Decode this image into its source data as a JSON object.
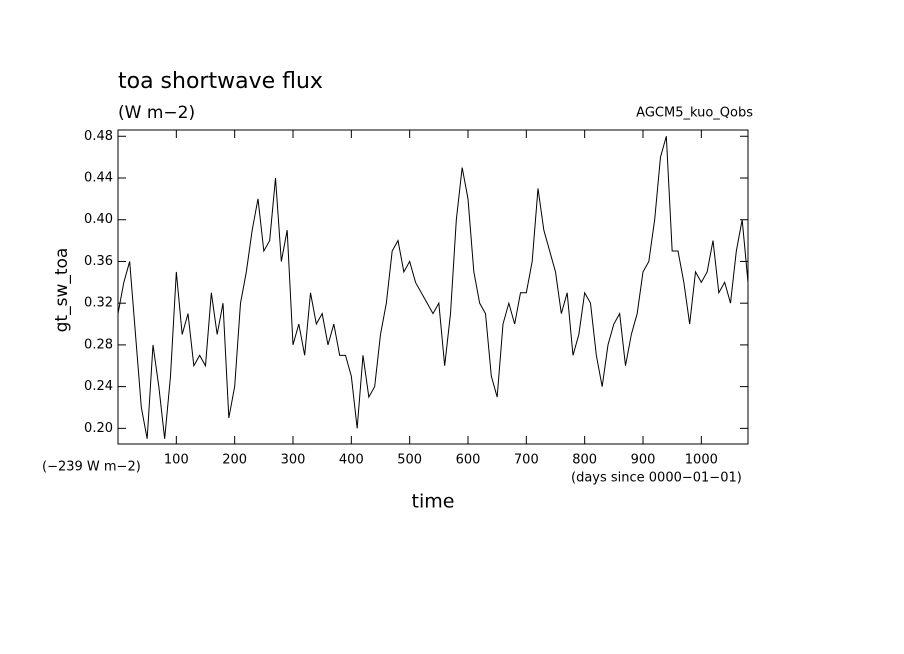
{
  "chart_data": {
    "type": "line",
    "title": "toa shortwave flux",
    "subtitle": "(W m−2)",
    "annotation_right": "AGCM5_kuo_Qobs",
    "annotation_offset": "(−239 W m−2)",
    "annotation_units": "(days since 0000−01−01)",
    "x_label": "time",
    "y_label": "gt_sw_toa",
    "x": [
      0,
      10,
      20,
      30,
      40,
      50,
      60,
      70,
      80,
      90,
      100,
      110,
      120,
      130,
      140,
      150,
      160,
      170,
      180,
      190,
      200,
      210,
      220,
      230,
      240,
      250,
      260,
      270,
      280,
      290,
      300,
      310,
      320,
      330,
      340,
      350,
      360,
      370,
      380,
      390,
      400,
      410,
      420,
      430,
      440,
      450,
      460,
      470,
      480,
      490,
      500,
      510,
      520,
      530,
      540,
      550,
      560,
      570,
      580,
      590,
      600,
      610,
      620,
      630,
      640,
      650,
      660,
      670,
      680,
      690,
      700,
      710,
      720,
      730,
      740,
      750,
      760,
      770,
      780,
      790,
      800,
      810,
      820,
      830,
      840,
      850,
      860,
      870,
      880,
      890,
      900,
      910,
      920,
      930,
      940,
      950,
      960,
      970,
      980,
      990,
      1000,
      1010,
      1020,
      1030,
      1040,
      1050,
      1060,
      1070,
      1080
    ],
    "series": [
      {
        "name": "gt_sw_toa",
        "color": "#000000",
        "values": [
          0.31,
          0.34,
          0.36,
          0.29,
          0.22,
          0.19,
          0.28,
          0.24,
          0.19,
          0.25,
          0.35,
          0.29,
          0.31,
          0.26,
          0.27,
          0.26,
          0.33,
          0.29,
          0.32,
          0.21,
          0.24,
          0.32,
          0.35,
          0.39,
          0.42,
          0.37,
          0.38,
          0.44,
          0.36,
          0.39,
          0.28,
          0.3,
          0.27,
          0.33,
          0.3,
          0.31,
          0.28,
          0.3,
          0.27,
          0.27,
          0.25,
          0.2,
          0.27,
          0.23,
          0.24,
          0.29,
          0.32,
          0.37,
          0.38,
          0.35,
          0.36,
          0.34,
          0.33,
          0.32,
          0.31,
          0.32,
          0.26,
          0.31,
          0.4,
          0.45,
          0.42,
          0.35,
          0.32,
          0.31,
          0.25,
          0.23,
          0.3,
          0.32,
          0.3,
          0.33,
          0.33,
          0.36,
          0.43,
          0.39,
          0.37,
          0.35,
          0.31,
          0.33,
          0.27,
          0.29,
          0.33,
          0.32,
          0.27,
          0.24,
          0.28,
          0.3,
          0.31,
          0.26,
          0.29,
          0.31,
          0.35,
          0.36,
          0.4,
          0.46,
          0.48,
          0.37,
          0.37,
          0.34,
          0.3,
          0.35,
          0.34,
          0.35,
          0.38,
          0.33,
          0.34,
          0.32,
          0.37,
          0.4,
          0.34
        ]
      }
    ],
    "xlim": [
      0,
      1080
    ],
    "ylim": [
      0.185,
      0.486
    ],
    "xticks": [
      100,
      200,
      300,
      400,
      500,
      600,
      700,
      800,
      900,
      1000
    ],
    "yticks": [
      {
        "value": 0.2,
        "label": "0.20"
      },
      0.24,
      0.28,
      0.32,
      0.36,
      {
        "value": 0.4,
        "label": "0.40"
      },
      0.44,
      0.48
    ]
  }
}
